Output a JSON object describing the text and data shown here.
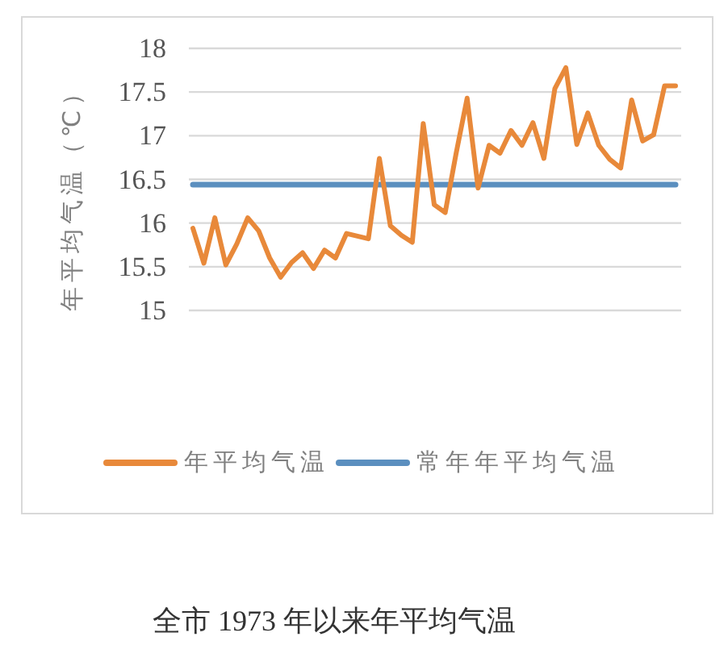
{
  "chart_data": {
    "type": "line",
    "ylabel": "年平均气温（℃）",
    "annotations": [
      "全市 1973 年以来年平均气温"
    ],
    "categories": [
      null,
      null,
      null,
      null,
      null,
      null,
      null,
      null,
      null,
      null,
      null,
      null,
      null,
      null,
      null,
      null,
      null,
      null,
      null,
      null,
      null,
      null,
      null,
      null,
      null,
      null,
      null,
      null,
      null,
      null,
      null,
      null,
      null,
      null,
      null,
      null,
      null,
      null,
      null,
      null,
      null,
      null,
      null,
      null,
      null
    ],
    "series": [
      {
        "name": "年平均气温",
        "color": "#e8893a",
        "values": [
          15.94,
          15.54,
          16.06,
          15.52,
          15.76,
          16.06,
          15.91,
          15.6,
          15.38,
          15.55,
          15.66,
          15.48,
          15.69,
          15.6,
          15.88,
          15.85,
          15.82,
          16.74,
          15.97,
          15.86,
          15.78,
          17.14,
          16.21,
          16.12,
          16.8,
          17.43,
          16.4,
          16.89,
          16.8,
          17.06,
          16.89,
          17.15,
          16.74,
          17.54,
          17.78,
          16.9,
          17.26,
          16.89,
          16.73,
          16.63,
          17.41,
          16.94,
          17.01,
          17.57,
          17.57
        ]
      },
      {
        "name": "常年年平均气温",
        "color": "#5b8fbf",
        "values": [
          16.44,
          16.44,
          16.44,
          16.44,
          16.44,
          16.44,
          16.44,
          16.44,
          16.44,
          16.44,
          16.44,
          16.44,
          16.44,
          16.44,
          16.44,
          16.44,
          16.44,
          16.44,
          16.44,
          16.44,
          16.44,
          16.44,
          16.44,
          16.44,
          16.44,
          16.44,
          16.44,
          16.44,
          16.44,
          16.44,
          16.44,
          16.44,
          16.44,
          16.44,
          16.44,
          16.44,
          16.44,
          16.44,
          16.44,
          16.44,
          16.44,
          16.44,
          16.44,
          16.44,
          16.44
        ]
      }
    ],
    "ylim": [
      15,
      18
    ],
    "yticks": [
      15,
      15.5,
      16,
      16.5,
      17,
      17.5,
      18
    ],
    "grid": "y",
    "legend": "bottom"
  }
}
